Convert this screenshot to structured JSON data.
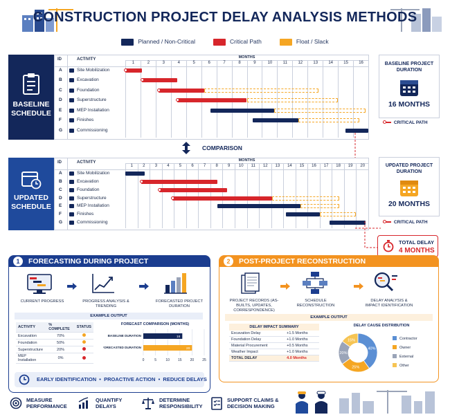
{
  "title": "CONSTRUCTION PROJECT DELAY ANALYSIS METHODS",
  "legend": [
    {
      "label": "Planned / Non-Critical",
      "color": "#13275a"
    },
    {
      "label": "Critical Path",
      "color": "#d7262b"
    },
    {
      "label": "Float / Slack",
      "color": "#f5a623"
    }
  ],
  "baseline": {
    "panel_label": "BASELINE SCHEDULE",
    "months": [
      "1",
      "2",
      "3",
      "4",
      "5",
      "6",
      "7",
      "8",
      "9",
      "10",
      "11",
      "12",
      "13",
      "14",
      "15",
      "16"
    ],
    "duration_title": "BASELINE PROJECT DURATION",
    "duration_value": "16 MONTHS",
    "critical_path_label": "CRITICAL PATH"
  },
  "comparison_label": "COMPARISON",
  "updated": {
    "panel_label": "UPDATED SCHEDULE",
    "months": [
      "1",
      "2",
      "3",
      "4",
      "5",
      "6",
      "7",
      "8",
      "9",
      "10",
      "11",
      "12",
      "13",
      "14",
      "15",
      "16",
      "17",
      "18",
      "19",
      "20"
    ],
    "duration_title": "UPDATED PROJECT DURATION",
    "duration_value": "20 MONTHS",
    "critical_path_label": "CRITICAL PATH",
    "total_delay_title": "TOTAL DELAY",
    "total_delay_value": "4 MONTHS"
  },
  "table_headers": {
    "id": "ID",
    "activity": "ACTIVITY",
    "months": "MONTHS"
  },
  "activities": [
    {
      "id": "A",
      "name": "Site Mobilization"
    },
    {
      "id": "B",
      "name": "Excavation"
    },
    {
      "id": "C",
      "name": "Foundation"
    },
    {
      "id": "D",
      "name": "Superstructure"
    },
    {
      "id": "E",
      "name": "MEP Installation"
    },
    {
      "id": "F",
      "name": "Finishes"
    },
    {
      "id": "G",
      "name": "Commissioning"
    }
  ],
  "forecasting": {
    "number": "1",
    "title": "FORECASTING DURING PROJECT",
    "steps": [
      "CURRENT PROGRESS",
      "PROGRESS ANALYSIS & TRENDING",
      "FORECASTED PROJECT DURATION"
    ],
    "example_output": "EXAMPLE OUTPUT",
    "table_headers": [
      "ACTIVITY",
      "% COMPLETE",
      "STATUS"
    ],
    "table_rows": [
      {
        "activity": "Excavation",
        "complete": "70%",
        "status_color": "#f5a623"
      },
      {
        "activity": "Foundation",
        "complete": "50%",
        "status_color": "#f5a623"
      },
      {
        "activity": "Superstructure",
        "complete": "20%",
        "status_color": "#d7262b"
      },
      {
        "activity": "MEP Installation",
        "complete": "0%",
        "status_color": "#d7262b"
      }
    ],
    "forecast_title": "FORECAST COMPARISON (MONTHS)",
    "forecast_rows": [
      {
        "label": "BASELINE DURATION",
        "value": 16,
        "color": "#13275a"
      },
      {
        "label": "FORECASTED DURATION",
        "value": 20,
        "color": "#f5a623"
      }
    ],
    "forecast_ticks": [
      "0",
      "5",
      "10",
      "15",
      "20",
      "25"
    ],
    "footer": [
      "EARLY IDENTIFICATION",
      "PROACTIVE ACTION",
      "REDUCE DELAYS"
    ]
  },
  "reconstruction": {
    "number": "2",
    "title": "POST-PROJECT RECONSTRUCTION",
    "steps": [
      "PROJECT RECORDS (AS-BUILTS, UPDATES, CORRESPONDENCE)",
      "SCHEDULE RECONSTRUCTION",
      "DELAY ANALYSIS & IMPACT IDENTIFICATION"
    ],
    "example_output": "EXAMPLE OUTPUT",
    "summary_title": "DELAY IMPACT SUMMARY",
    "summary_rows": [
      {
        "label": "Excavation Delay",
        "value": "+1.5 Months"
      },
      {
        "label": "Foundation Delay",
        "value": "+1.0 Months"
      },
      {
        "label": "Material Procurement",
        "value": "+0.5 Months"
      },
      {
        "label": "Weather Impact",
        "value": "+1.0 Months"
      }
    ],
    "total_label": "TOTAL DELAY",
    "total_value": "4.0 Months",
    "distribution_title": "DELAY CAUSE DISTRIBUTION",
    "distribution": [
      {
        "label": "Contractor",
        "value": 40,
        "color": "#5b8fd4"
      },
      {
        "label": "Owner",
        "value": 25,
        "color": "#f5a623"
      },
      {
        "label": "External",
        "value": 20,
        "color": "#9aa4b8"
      },
      {
        "label": "Other",
        "value": 15,
        "color": "#f6c453"
      }
    ],
    "distribution_labels": [
      "15%",
      "40%",
      "25%",
      "20%"
    ]
  },
  "bottom_items": [
    "MEASURE PERFORMANCE",
    "QUANTIFY DELAYS",
    "DETERMINE RESPONSIBILITY",
    "SUPPORT CLAIMS & DECISION MAKING"
  ]
}
